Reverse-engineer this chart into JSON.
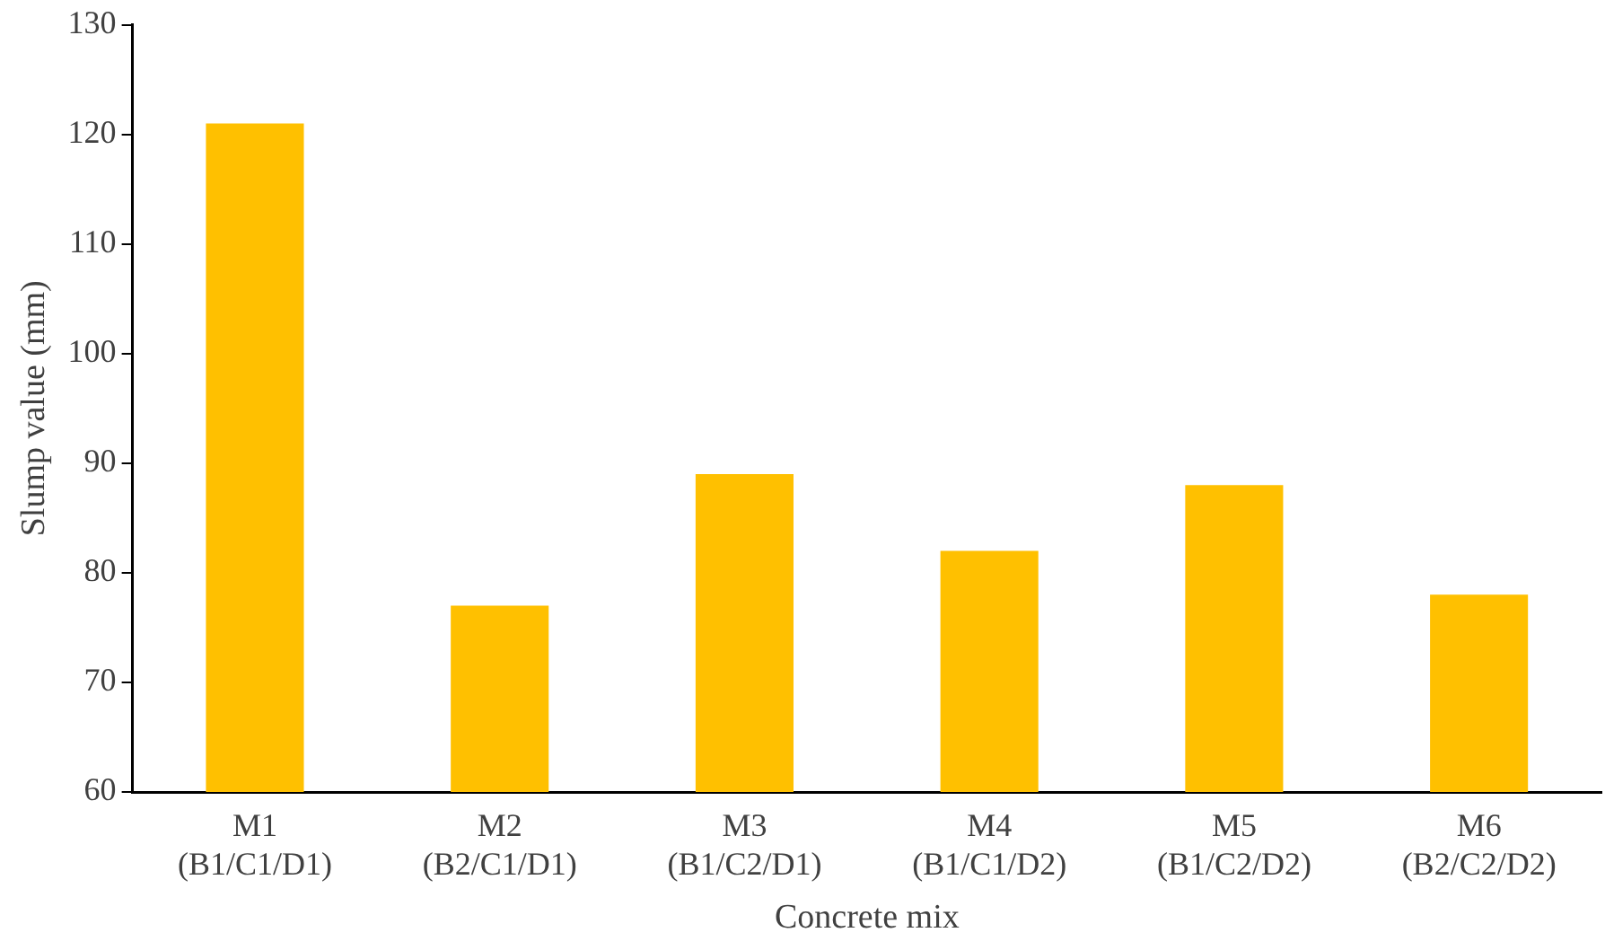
{
  "chart_data": {
    "type": "bar",
    "xlabel": "Concrete mix",
    "ylabel": "Slump value (mm)",
    "categories": [
      "M1\n(B1/C1/D1)",
      "M2\n(B2/C1/D1)",
      "M3\n(B1/C2/D1)",
      "M4\n(B1/C1/D2)",
      "M5\n(B1/C2/D2)",
      "M6\n(B2/C2/D2)"
    ],
    "values": [
      121,
      77,
      89,
      82,
      88,
      78
    ],
    "color": "#ffc000",
    "ylim": [
      60,
      130
    ],
    "yticks": [
      60,
      70,
      80,
      90,
      100,
      110,
      120,
      130
    ],
    "grid": false,
    "legend": false
  }
}
